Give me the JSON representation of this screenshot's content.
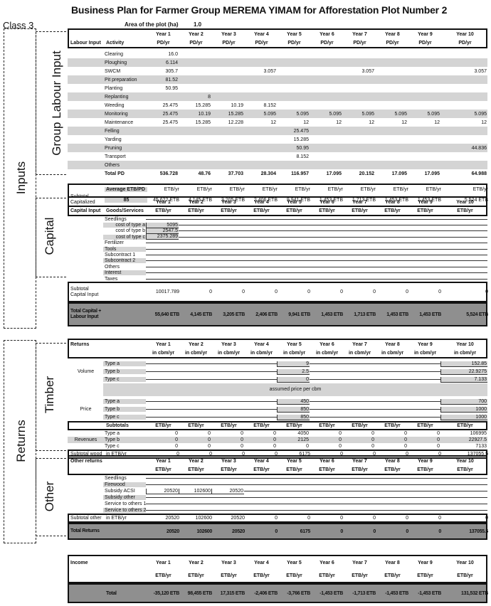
{
  "title": "Business Plan for Farmer Group MEREMA YIMAM for Afforestation Plot Number 2",
  "class_label": "Class 3",
  "area_label": "Area of the plot (ha)",
  "area_value": "1.0",
  "groups": {
    "inputs": "Inputs",
    "labour": "Group Labour Input",
    "capital": "Capital",
    "returns": "Returns",
    "timber": "Timber",
    "other": "Other"
  },
  "years": [
    "Year 1",
    "Year 2",
    "Year 3",
    "Year 4",
    "Year 5",
    "Year 6",
    "Year 7",
    "Year 8",
    "Year 9",
    "Year 10"
  ],
  "labour": {
    "head": [
      "Labour Input",
      "Activity"
    ],
    "unit": "PD/yr",
    "rows": [
      {
        "a": "Clearing",
        "v": [
          "16.0",
          "",
          "",
          "",
          "",
          "",
          "",
          "",
          "",
          ""
        ]
      },
      {
        "a": "Ploughing",
        "v": [
          "6.114",
          "",
          "",
          "",
          "",
          "",
          "",
          "",
          "",
          ""
        ]
      },
      {
        "a": "SWCM",
        "v": [
          "305.7",
          "",
          "",
          "3.057",
          "",
          "",
          "3.057",
          "",
          "",
          "3.057"
        ]
      },
      {
        "a": "Pit preparation",
        "v": [
          "81.52",
          "",
          "",
          "",
          "",
          "",
          "",
          "",
          "",
          ""
        ]
      },
      {
        "a": "Planting",
        "v": [
          "50.95",
          "",
          "",
          "",
          "",
          "",
          "",
          "",
          "",
          ""
        ]
      },
      {
        "a": "Replanting",
        "v": [
          "",
          "8",
          "",
          "",
          "",
          "",
          "",
          "",
          "",
          ""
        ]
      },
      {
        "a": "Weeding",
        "v": [
          "25.475",
          "15.285",
          "10.19",
          "8.152",
          "",
          "",
          "",
          "",
          "",
          ""
        ]
      },
      {
        "a": "Monitoring",
        "v": [
          "25.475",
          "10.19",
          "15.285",
          "5.095",
          "5.095",
          "5.095",
          "5.095",
          "5.095",
          "5.095",
          "5.095"
        ]
      },
      {
        "a": "Maintenance",
        "v": [
          "25.475",
          "15.285",
          "12.228",
          "12",
          "12",
          "12",
          "12",
          "12",
          "12",
          "12"
        ]
      },
      {
        "a": "Felling",
        "v": [
          "",
          "",
          "",
          "",
          "25.475",
          "",
          "",
          "",
          "",
          ""
        ]
      },
      {
        "a": "Yarding",
        "v": [
          "",
          "",
          "",
          "",
          "15.285",
          "",
          "",
          "",
          "",
          ""
        ]
      },
      {
        "a": "Pruning",
        "v": [
          "",
          "",
          "",
          "",
          "50.95",
          "",
          "",
          "",
          "",
          "44.836"
        ]
      },
      {
        "a": "Transport",
        "v": [
          "",
          "",
          "",
          "",
          "8.152",
          "",
          "",
          "",
          "",
          ""
        ]
      },
      {
        "a": "Others",
        "v": [
          "",
          "",
          "",
          "",
          "",
          "",
          "",
          "",
          "",
          ""
        ]
      },
      {
        "a": "Total PD",
        "v": [
          "536.728",
          "48.76",
          "37.703",
          "28.304",
          "116.957",
          "17.095",
          "20.152",
          "17.095",
          "17.095",
          "64.988"
        ]
      }
    ],
    "subtotal": {
      "label": "Subtotal Capitalized",
      "avg_label": "Average ETB/PD",
      "avg": "85",
      "unit": "ETB/yr",
      "v": [
        "45,622 ETB",
        "4,145 ETB",
        "3,205 ETB",
        "2,406 ETB",
        "9,941 ETB",
        "1,453 ETB",
        "1,713 ETB",
        "1,453 ETB",
        "1,453 ETB",
        "5,524 ETB"
      ]
    }
  },
  "capital": {
    "head": [
      "Capital Input",
      "Goods/Services"
    ],
    "unit": "ETB/yr",
    "rows": [
      {
        "a": "Seedlings",
        "v": [
          "",
          "",
          "",
          "",
          "",
          "",
          "",
          "",
          "",
          ""
        ]
      },
      {
        "a": "cost of type a",
        "v": [
          "5095",
          "",
          "",
          "",
          "",
          "",
          "",
          "",
          "",
          ""
        ]
      },
      {
        "a": "cost of type b",
        "v": [
          "2547.5",
          "",
          "",
          "",
          "",
          "",
          "",
          "",
          "",
          ""
        ]
      },
      {
        "a": "cost of type c",
        "v": [
          "2375.289",
          "",
          "",
          "",
          "",
          "",
          "",
          "",
          "",
          ""
        ]
      },
      {
        "a": "Fertilizer",
        "v": [
          "",
          "",
          "",
          "",
          "",
          "",
          "",
          "",
          "",
          ""
        ]
      },
      {
        "a": "Tools",
        "v": [
          "",
          "",
          "",
          "",
          "",
          "",
          "",
          "",
          "",
          ""
        ]
      },
      {
        "a": "Subcontract 1",
        "v": [
          "",
          "",
          "",
          "",
          "",
          "",
          "",
          "",
          "",
          ""
        ]
      },
      {
        "a": "Subcontract 2",
        "v": [
          "",
          "",
          "",
          "",
          "",
          "",
          "",
          "",
          "",
          ""
        ]
      },
      {
        "a": "Others",
        "v": [
          "",
          "",
          "",
          "",
          "",
          "",
          "",
          "",
          "",
          ""
        ]
      },
      {
        "a": "Interest",
        "v": [
          "",
          "",
          "",
          "",
          "",
          "",
          "",
          "",
          "",
          ""
        ]
      },
      {
        "a": "Taxes",
        "v": [
          "",
          "",
          "",
          "",
          "",
          "",
          "",
          "",
          "",
          ""
        ]
      }
    ],
    "subtotal": {
      "label": "Subtotal Capital Input",
      "v": [
        "10017.789",
        "0",
        "0",
        "0",
        "0",
        "0",
        "0",
        "0",
        "0",
        "0"
      ]
    },
    "total": {
      "label": "Total Capital + Labour Input",
      "v": [
        "55,640 ETB",
        "4,145 ETB",
        "3,205 ETB",
        "2,406 ETB",
        "9,941 ETB",
        "1,453 ETB",
        "1,713 ETB",
        "1,453 ETB",
        "1,453 ETB",
        "5,524 ETB"
      ]
    }
  },
  "timber": {
    "head": "Returns",
    "unit": "in cbm/yr",
    "volume": {
      "label": "Volume",
      "rows": [
        {
          "a": "Type a",
          "v": [
            "",
            "",
            "",
            "",
            "9",
            "",
            "",
            "",
            "",
            "152.85"
          ]
        },
        {
          "a": "Type b",
          "v": [
            "",
            "",
            "",
            "",
            "2.5",
            "",
            "",
            "",
            "",
            "22.9275"
          ]
        },
        {
          "a": "Type c",
          "v": [
            "",
            "",
            "",
            "",
            "0",
            "",
            "",
            "",
            "",
            "7.133"
          ]
        }
      ]
    },
    "price_note": "assumed price per cbm",
    "price": {
      "label": "Price",
      "rows": [
        {
          "a": "Type a",
          "v": [
            "",
            "",
            "",
            "",
            "450",
            "",
            "",
            "",
            "",
            "700"
          ]
        },
        {
          "a": "Type b",
          "v": [
            "",
            "",
            "",
            "",
            "850",
            "",
            "",
            "",
            "",
            "1000"
          ]
        },
        {
          "a": "Type c",
          "v": [
            "",
            "",
            "",
            "",
            "850",
            "",
            "",
            "",
            "",
            "1000"
          ]
        }
      ]
    },
    "subtotals_label": "Subtotals",
    "subtotals_unit": "ETB/yr",
    "revenues": {
      "label": "Revenues",
      "rows": [
        {
          "a": "Type a",
          "v": [
            "0",
            "0",
            "0",
            "0",
            "4050",
            "0",
            "0",
            "0",
            "0",
            "106995"
          ]
        },
        {
          "a": "Type b",
          "v": [
            "0",
            "0",
            "0",
            "0",
            "2125",
            "0",
            "0",
            "0",
            "0",
            "22927.5"
          ]
        },
        {
          "a": "Type c",
          "v": [
            "0",
            "0",
            "0",
            "0",
            "0",
            "0",
            "0",
            "0",
            "0",
            "7133"
          ]
        }
      ]
    },
    "subtotal": {
      "label": "Subtotal wood",
      "unit": "in ETB/yr",
      "v": [
        "0",
        "0",
        "0",
        "0",
        "6175",
        "0",
        "0",
        "0",
        "0",
        "137055.5"
      ]
    }
  },
  "other": {
    "head": "Other returns",
    "unit": "ETB/yr",
    "rows": [
      {
        "a": "Seedlings",
        "v": [
          "",
          "",
          "",
          "",
          "",
          "",
          "",
          "",
          "",
          ""
        ]
      },
      {
        "a": "Firewood",
        "v": [
          "",
          "",
          "",
          "",
          "",
          "",
          "",
          "",
          "",
          ""
        ]
      },
      {
        "a": "Subsidy ACSI",
        "v": [
          "20520",
          "102600",
          "20520",
          "",
          "",
          "",
          "",
          "",
          "",
          ""
        ]
      },
      {
        "a": "Subsidy other",
        "v": [
          "",
          "",
          "",
          "",
          "",
          "",
          "",
          "",
          "",
          ""
        ]
      },
      {
        "a": "Service to others 1",
        "v": [
          "",
          "",
          "",
          "",
          "",
          "",
          "",
          "",
          "",
          ""
        ]
      },
      {
        "a": "Service to others 2",
        "v": [
          "",
          "",
          "",
          "",
          "",
          "",
          "",
          "",
          "",
          ""
        ]
      }
    ],
    "subtotal": {
      "label": "Subtotal other",
      "unit": "in ETB/yr",
      "v": [
        "20520",
        "102600",
        "20520",
        "0",
        "0",
        "0",
        "0",
        "0",
        "0",
        "0"
      ]
    },
    "total": {
      "label": "Total Returns",
      "v": [
        "20520",
        "102600",
        "20520",
        "0",
        "6175",
        "0",
        "0",
        "0",
        "0",
        "137055.5"
      ]
    }
  },
  "income": {
    "head": "Income",
    "unit": "ETB/yr",
    "total_label": "Total",
    "v": [
      "-35,120 ETB",
      "98,455 ETB",
      "17,315 ETB",
      "-2,406 ETB",
      "-3,766 ETB",
      "-1,453 ETB",
      "-1,713 ETB",
      "-1,453 ETB",
      "-1,453 ETB",
      "131,532 ETB"
    ]
  }
}
